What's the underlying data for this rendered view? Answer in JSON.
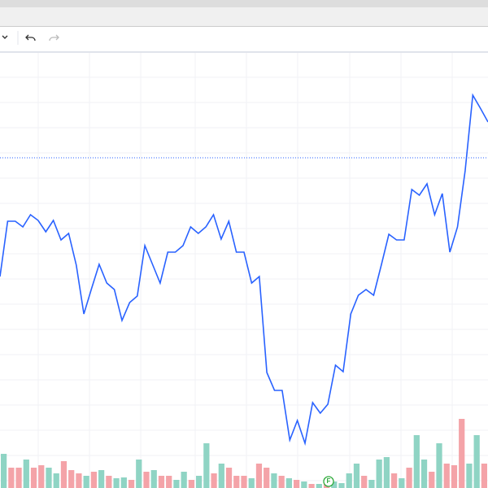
{
  "chart_data": [
    {
      "type": "line",
      "color": "#2962ff",
      "ylim": [
        0,
        535
      ],
      "price_line": 406,
      "grid": true,
      "values": [
        260,
        328,
        328,
        321,
        336,
        329,
        315,
        329,
        305,
        313,
        274,
        214,
        245,
        275,
        252,
        244,
        206,
        228,
        236,
        298,
        275,
        252,
        290,
        290,
        298,
        321,
        313,
        321,
        336,
        306,
        328,
        290,
        290,
        252,
        260,
        142,
        120,
        120,
        59,
        83,
        55,
        105,
        92,
        103,
        151,
        143,
        214,
        237,
        244,
        237,
        274,
        312,
        305,
        305,
        367,
        360,
        374,
        336,
        362,
        290,
        321,
        390,
        483,
        467,
        450
      ],
      "marker_label": "F"
    },
    {
      "type": "bar",
      "ylim": [
        0,
        535
      ],
      "values": [
        42,
        25,
        25,
        35,
        25,
        28,
        25,
        18,
        33,
        22,
        18,
        15,
        20,
        22,
        15,
        12,
        13,
        10,
        35,
        20,
        22,
        15,
        15,
        10,
        20,
        10,
        15,
        55,
        18,
        30,
        25,
        15,
        15,
        12,
        30,
        25,
        18,
        15,
        12,
        10,
        8,
        5,
        5,
        10,
        8,
        6,
        18,
        30,
        15,
        10,
        35,
        38,
        18,
        12,
        25,
        65,
        35,
        20,
        55,
        30,
        28,
        85,
        30,
        65,
        30
      ],
      "colors": [
        "#8fd4c4",
        "#f4a3a8",
        "#f4a3a8",
        "#8fd4c4",
        "#f4a3a8",
        "#f4a3a8",
        "#8fd4c4",
        "#8fd4c4",
        "#f4a3a8",
        "#f4a3a8",
        "#f4a3a8",
        "#8fd4c4",
        "#f4a3a8",
        "#8fd4c4",
        "#f4a3a8",
        "#8fd4c4",
        "#8fd4c4",
        "#f4a3a8",
        "#8fd4c4",
        "#f4a3a8",
        "#8fd4c4",
        "#f4a3a8",
        "#f4a3a8",
        "#8fd4c4",
        "#8fd4c4",
        "#f4a3a8",
        "#8fd4c4",
        "#8fd4c4",
        "#f4a3a8",
        "#8fd4c4",
        "#f4a3a8",
        "#f4a3a8",
        "#f4a3a8",
        "#8fd4c4",
        "#f4a3a8",
        "#f4a3a8",
        "#8fd4c4",
        "#f4a3a8",
        "#8fd4c4",
        "#f4a3a8",
        "#8fd4c4",
        "#f4a3a8",
        "#8fd4c4",
        "#f4a3a8",
        "#8fd4c4",
        "#8fd4c4",
        "#8fd4c4",
        "#8fd4c4",
        "#f4a3a8",
        "#8fd4c4",
        "#8fd4c4",
        "#8fd4c4",
        "#f4a3a8",
        "#8fd4c4",
        "#f4a3a8",
        "#8fd4c4",
        "#8fd4c4",
        "#f4a3a8",
        "#8fd4c4",
        "#f4a3a8",
        "#f4a3a8",
        "#f4a3a8",
        "#8fd4c4",
        "#8fd4c4",
        "#f4a3a8"
      ]
    }
  ]
}
